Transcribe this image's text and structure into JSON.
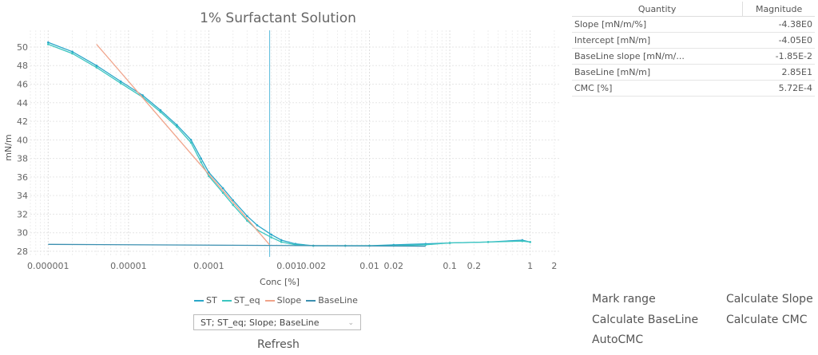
{
  "chart_data": {
    "type": "line",
    "title": "1% Surfactant Solution",
    "xlabel": "Conc [%]",
    "ylabel": "mN/m",
    "xscale": "log",
    "xlim": [
      6e-07,
      2.3
    ],
    "ylim": [
      27.4,
      51.8
    ],
    "grid": true,
    "legend_placement": "bottom",
    "x_ticks": [
      "0.000001",
      "0.00001",
      "0.0001",
      "0.001",
      "0.002",
      "0.01",
      "0.02",
      "0.1",
      "0.2",
      "1",
      "2"
    ],
    "x_tick_values": [
      1e-06,
      1e-05,
      0.0001,
      0.001,
      0.002,
      0.01,
      0.02,
      0.1,
      0.2,
      1,
      2
    ],
    "y_ticks": [
      28,
      30,
      32,
      34,
      36,
      38,
      40,
      42,
      44,
      46,
      48,
      50
    ],
    "cmc_marker": 0.000572,
    "series": [
      {
        "name": "ST",
        "color": "#2aa7c9",
        "x": [
          1e-06,
          2e-06,
          4e-06,
          8e-06,
          1.5e-05,
          2.5e-05,
          4e-05,
          6e-05,
          8e-05,
          0.0001,
          0.00015,
          0.0002,
          0.0003,
          0.0004,
          0.0006,
          0.0008,
          0.0012,
          0.002,
          0.005,
          0.01,
          0.02,
          0.05,
          0.1,
          0.3,
          0.8,
          1
        ],
        "y": [
          50.5,
          49.5,
          48.0,
          46.3,
          44.8,
          43.2,
          41.6,
          40.0,
          38.0,
          36.5,
          34.8,
          33.5,
          31.8,
          30.8,
          29.8,
          29.2,
          28.8,
          28.6,
          28.6,
          28.6,
          28.7,
          28.8,
          28.9,
          29.0,
          29.2,
          29.0
        ]
      },
      {
        "name": "ST_eq",
        "color": "#3cc6c0",
        "x": [
          1e-06,
          2e-06,
          4e-06,
          8e-06,
          1.5e-05,
          2.5e-05,
          4e-05,
          6e-05,
          8e-05,
          0.0001,
          0.00015,
          0.0002,
          0.0003,
          0.0004,
          0.0006,
          0.0008,
          0.0012,
          0.002,
          0.005,
          0.01,
          0.02,
          0.05,
          0.1,
          0.3,
          0.8,
          1
        ],
        "y": [
          50.3,
          49.3,
          47.8,
          46.1,
          44.6,
          43.0,
          41.4,
          39.7,
          37.6,
          36.1,
          34.3,
          33.0,
          31.3,
          30.3,
          29.5,
          29.0,
          28.7,
          28.6,
          28.6,
          28.6,
          28.6,
          28.7,
          28.9,
          29.0,
          29.1,
          29.0
        ]
      },
      {
        "name": "Slope",
        "color": "#f0a38a",
        "x": [
          4e-06,
          0.000572
        ],
        "y": [
          50.3,
          28.7
        ]
      },
      {
        "name": "BaseLine",
        "color": "#3b8fb0",
        "x": [
          1e-06,
          0.05
        ],
        "y": [
          28.75,
          28.55
        ]
      }
    ]
  },
  "legend": [
    "ST",
    "ST_eq",
    "Slope",
    "BaseLine"
  ],
  "series_select": "ST; ST_eq; Slope; BaseLine",
  "refresh_label": "Refresh",
  "table": {
    "headers": [
      "Quantity",
      "Magnitude"
    ],
    "rows": [
      [
        "Slope  [mN/m/%]",
        "-4.38E0"
      ],
      [
        "Intercept  [mN/m]",
        "-4.05E0"
      ],
      [
        "BaseLine slope  [mN/m/...",
        "-1.85E-2"
      ],
      [
        "BaseLine  [mN/m]",
        "2.85E1"
      ],
      [
        "CMC [%]",
        "5.72E-4"
      ]
    ]
  },
  "buttons": {
    "mark_range": "Mark range",
    "calculate_slope": "Calculate Slope",
    "calculate_baseline": "Calculate BaseLine",
    "calculate_cmc": "Calculate CMC",
    "autocmc": "AutoCMC"
  }
}
